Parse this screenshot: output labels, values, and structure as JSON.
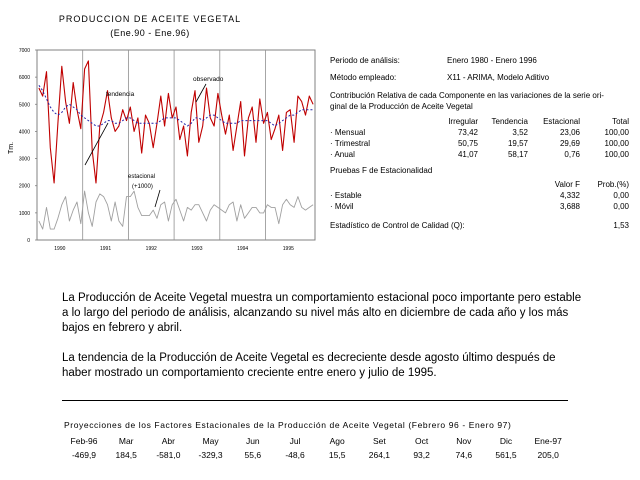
{
  "chart": {
    "title": "PRODUCCION DE ACEITE VEGETAL",
    "subtitle": "(Ene.90 - Ene.96)",
    "ylabel": "Tm.",
    "ann_trend": "tendencia",
    "ann_observed": "observado",
    "ann_seasonal": "estacional",
    "ann_seasonal2": "(+1000)"
  },
  "chart_data": {
    "type": "line",
    "title": "PRODUCCION DE ACEITE VEGETAL",
    "subtitle": "(Ene.90 - Ene.96)",
    "ylabel": "Tm.",
    "ylim": [
      0,
      7000
    ],
    "yticks": [
      "0",
      "1000",
      "2000",
      "3000",
      "4000",
      "5000",
      "6000",
      "7000"
    ],
    "xticks": [
      "1990",
      "1991",
      "1992",
      "1993",
      "1994",
      "1995"
    ],
    "x_start": "1990-01",
    "series": [
      {
        "name": "observado",
        "color": "#c00000",
        "values": [
          5600,
          5300,
          6200,
          3400,
          2100,
          4300,
          6400,
          5100,
          4300,
          5800,
          4800,
          4100,
          6300,
          6600,
          3300,
          2100,
          4200,
          4700,
          5500,
          4500,
          4000,
          4200,
          4800,
          4400,
          4900,
          4000,
          4500,
          3200,
          4600,
          4300,
          3400,
          4300,
          5300,
          4200,
          5400,
          4500,
          4900,
          3700,
          4200,
          3100,
          4700,
          5500,
          3600,
          4200,
          5600,
          4500,
          4200,
          5400,
          4600,
          3900,
          4600,
          3300,
          4200,
          5100,
          3100,
          4500,
          4900,
          3600,
          5200,
          4300,
          4700,
          3700,
          4100,
          4600,
          3300,
          4700,
          4800,
          3600,
          5300,
          5100,
          4600,
          5300,
          5000
        ]
      },
      {
        "name": "tendencia",
        "color": "#2222aa",
        "values": [
          5700,
          5500,
          5200,
          4900,
          4700,
          4600,
          4700,
          4900,
          5000,
          4900,
          4800,
          4600,
          4500,
          4400,
          4300,
          4200,
          4200,
          4300,
          4400,
          4400,
          4300,
          4300,
          4400,
          4500,
          4500,
          4400,
          4300,
          4300,
          4300,
          4300,
          4300,
          4300,
          4400,
          4500,
          4500,
          4500,
          4500,
          4400,
          4300,
          4200,
          4300,
          4500,
          4500,
          4400,
          4500,
          4600,
          4600,
          4500,
          4400,
          4300,
          4300,
          4300,
          4300,
          4400,
          4400,
          4400,
          4400,
          4400,
          4400,
          4400,
          4400,
          4300,
          4200,
          4300,
          4400,
          4500,
          4600,
          4600,
          4700,
          4800,
          4800,
          4800,
          4800
        ]
      },
      {
        "name": "estacional",
        "color": "#a0a0a0",
        "values": [
          700,
          400,
          1200,
          400,
          400,
          800,
          1300,
          1600,
          700,
          1100,
          1400,
          600,
          1800,
          1000,
          500,
          1400,
          1700,
          1600,
          1300,
          700,
          1400,
          700,
          500,
          1600,
          1600,
          1800,
          1200,
          900,
          900,
          900,
          1100,
          800,
          1300,
          1400,
          700,
          1300,
          1500,
          1100,
          700,
          1200,
          1100,
          1300,
          1300,
          1000,
          700,
          1100,
          1300,
          1200,
          1100,
          1000,
          1300,
          1400,
          700,
          1300,
          800,
          1000,
          1200,
          1200,
          1000,
          1000,
          1300,
          1200,
          1200,
          600,
          1300,
          1500,
          1300,
          1200,
          1600,
          1200,
          1100,
          1200,
          1300
        ]
      }
    ]
  },
  "analysis": {
    "periodo_label": "Periodo de análisis:",
    "periodo_value": "Enero 1980 - Enero 1996",
    "metodo_label": "Método empleado:",
    "metodo_value": "X11 - ARIMA, Modelo Aditivo",
    "contrib_line1": "Contribución Relativa de cada Componente en las variaciones de la serie ori-",
    "contrib_line2": "ginal de la Producción de Aceite Vegetal",
    "headers": [
      "Irregular",
      "Tendencia",
      "Estacional",
      "Total"
    ],
    "rows": [
      {
        "label": "· Mensual",
        "values": [
          "73,42",
          "3,52",
          "23,06",
          "100,00"
        ]
      },
      {
        "label": "· Trimestral",
        "values": [
          "50,75",
          "19,57",
          "29,69",
          "100,00"
        ]
      },
      {
        "label": "· Anual",
        "values": [
          "41,07",
          "58,17",
          "0,76",
          "100,00"
        ]
      }
    ],
    "f_title": "Pruebas F de Estacionalidad",
    "f_headers": [
      "Valor F",
      "Prob.(%)"
    ],
    "f_rows": [
      {
        "label": "· Estable",
        "values": [
          "4,332",
          "0,00"
        ]
      },
      {
        "label": "· Móvil",
        "values": [
          "3,688",
          "0,00"
        ]
      }
    ],
    "q_label": "Estadístico de Control de Calidad (Q):",
    "q_value": "1,53"
  },
  "text": {
    "para1": "La Producción de Aceite Vegetal muestra un comportamiento estacional poco importante pero estable a lo largo del periodo de análisis, alcanzando su nivel  más alto en diciembre de cada año y los más bajos en febrero y abril.",
    "para2": "La tendencia de la Producción de Aceite Vegetal es decreciente desde agosto último después de haber mostrado un comportamiento creciente entre enero y julio de 1995."
  },
  "projections": {
    "title": "Proyecciones de los Factores Estacionales de la Producción de Aceite Vegetal (Febrero 96 - Enero 97)",
    "months": [
      "Feb-96",
      "Mar",
      "Abr",
      "May",
      "Jun",
      "Jul",
      "Ago",
      "Set",
      "Oct",
      "Nov",
      "Dic",
      "Ene-97"
    ],
    "values": [
      "-469,9",
      "184,5",
      "-581,0",
      "-329,3",
      "55,6",
      "-48,6",
      "15,5",
      "264,1",
      "93,2",
      "74,6",
      "561,5",
      "205,0"
    ]
  }
}
